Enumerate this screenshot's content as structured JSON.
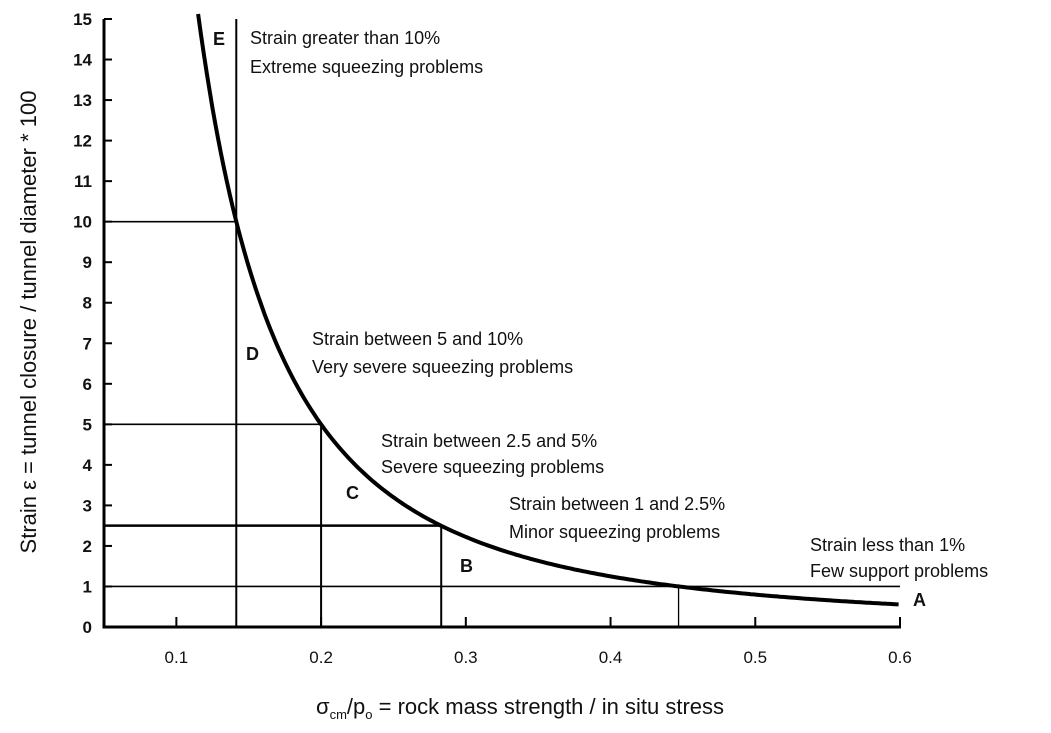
{
  "chart_data": {
    "type": "line",
    "title": "",
    "xlabel": "σcm/po = rock mass strength / in situ stress",
    "xlabel_parts": {
      "sigma": "σ",
      "sub1": "cm",
      "slash": "/p",
      "sub2": "o",
      "rest": " = rock mass strength / in situ stress"
    },
    "ylabel": "Strain ε = tunnel closure / tunnel diameter * 100",
    "xlim": [
      0.05,
      0.6
    ],
    "ylim": [
      0,
      15
    ],
    "x_ticks": [
      "0.1",
      "0.2",
      "0.3",
      "0.4",
      "0.5",
      "0.6"
    ],
    "y_ticks": [
      "0",
      "1",
      "2",
      "3",
      "4",
      "5",
      "6",
      "7",
      "8",
      "9",
      "10",
      "11",
      "12",
      "13",
      "14",
      "15"
    ],
    "grid": false,
    "curve": {
      "equation": "strain = 0.2 * (σcm/po)^-2",
      "x": [
        0.115,
        0.13,
        0.1414,
        0.16,
        0.18,
        0.2,
        0.25,
        0.283,
        0.35,
        0.4,
        0.447,
        0.5,
        0.55,
        0.6
      ],
      "y": [
        15.1,
        11.8,
        10,
        7.8,
        6.2,
        5,
        3.2,
        2.5,
        1.63,
        1.25,
        1,
        0.8,
        0.66,
        0.56
      ]
    },
    "thresholds": [
      {
        "strain": 10,
        "ratio": 0.1414
      },
      {
        "strain": 5,
        "ratio": 0.2
      },
      {
        "strain": 2.5,
        "ratio": 0.283
      },
      {
        "strain": 1,
        "ratio": 0.447
      }
    ],
    "zones": [
      {
        "letter": "E",
        "line1": "Strain greater than 10%",
        "line2": "Extreme squeezing problems"
      },
      {
        "letter": "D",
        "line1": "Strain between 5 and 10%",
        "line2": "Very severe squeezing problems"
      },
      {
        "letter": "C",
        "line1": "Strain between 2.5 and 5%",
        "line2": "Severe squeezing problems"
      },
      {
        "letter": "B",
        "line1": "Strain between 1 and 2.5%",
        "line2": "Minor squeezing problems"
      },
      {
        "letter": "A",
        "line1": "Strain less than 1%",
        "line2": "Few support problems"
      }
    ],
    "colors": {
      "line": "#000000",
      "background": "#ffffff"
    }
  }
}
